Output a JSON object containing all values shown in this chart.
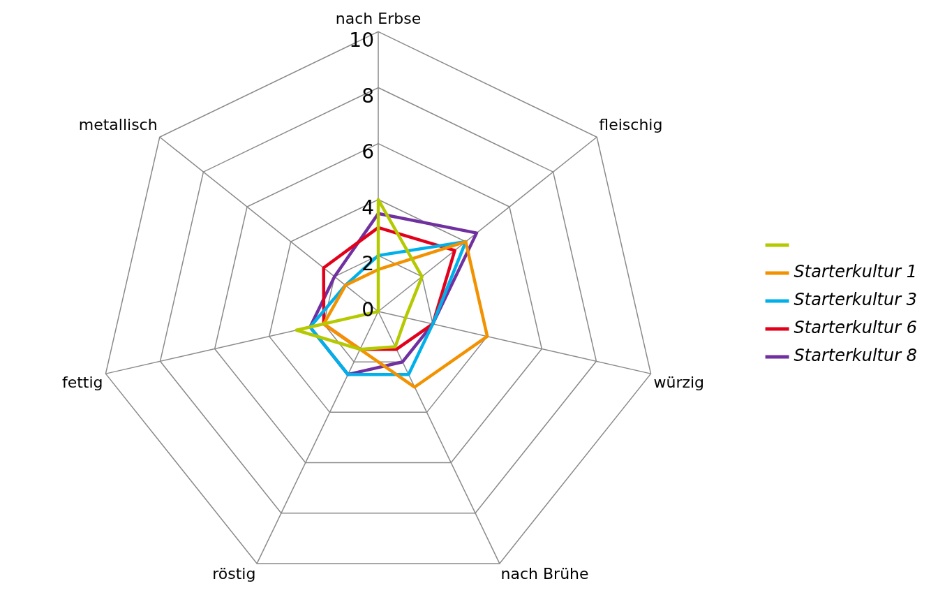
{
  "chart_data": {
    "type": "radar",
    "categories": [
      "nach Erbse",
      "fleischig",
      "würzig",
      "nach Brühe",
      "röstig",
      "fettig",
      "metallisch"
    ],
    "ylim": [
      0,
      10
    ],
    "yticks": [
      0,
      2,
      4,
      6,
      8,
      10
    ],
    "grid": true,
    "legend": "right",
    "marker": "none",
    "series": [
      {
        "color": "#b5c900",
        "values": [
          4,
          2,
          1,
          1.4,
          1.5,
          3,
          0
        ]
      },
      {
        "name": "Starterkultur 1",
        "color": "#f39200",
        "values": [
          1.5,
          4,
          4,
          3,
          1.5,
          2,
          1.5
        ]
      },
      {
        "name": "Starterkultur 3",
        "color": "#00b0ea",
        "values": [
          2,
          4,
          2,
          2.5,
          2.5,
          2.5,
          1.5
        ]
      },
      {
        "name": "Starterkultur 6",
        "color": "#e2001a",
        "values": [
          3,
          3.5,
          2,
          1.5,
          1.5,
          2,
          2.5
        ]
      },
      {
        "name": "Starterkultur 8",
        "color": "#7030a0",
        "values": [
          3.5,
          4.5,
          2,
          2,
          2.5,
          2.5,
          2
        ]
      }
    ]
  }
}
